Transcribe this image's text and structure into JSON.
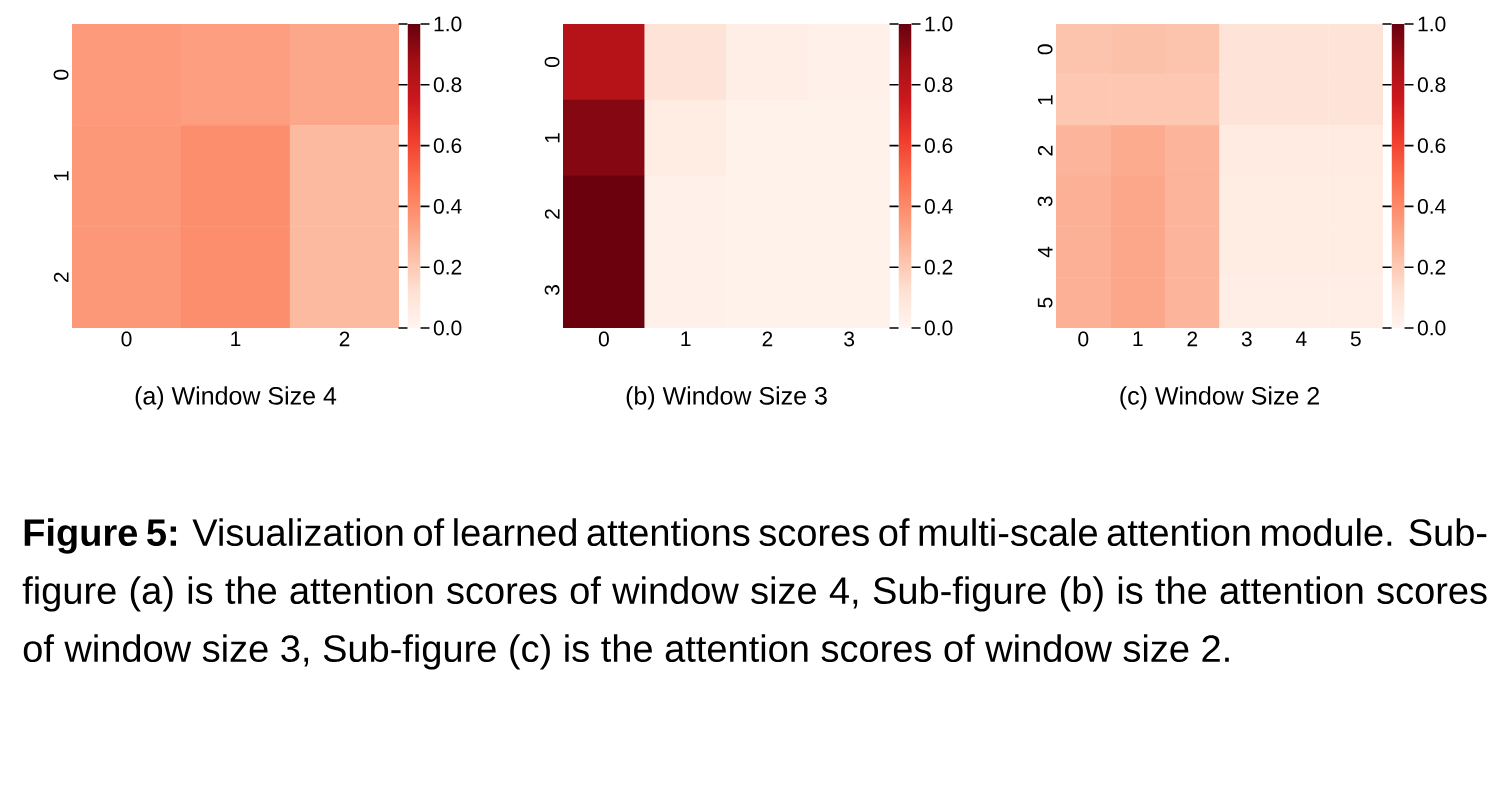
{
  "chart_data": [
    {
      "type": "heatmap",
      "title": "(a) Window Size 4",
      "categories": [
        "0",
        "1",
        "2"
      ],
      "y_categories": [
        "0",
        "1",
        "2"
      ],
      "cells": [
        [
          0.35,
          0.34,
          0.31
        ],
        [
          0.36,
          0.39,
          0.25
        ],
        [
          0.36,
          0.39,
          0.25
        ]
      ],
      "clim": [
        0,
        1
      ],
      "cticks": [
        {
          "value": 0,
          "label": "0.0"
        },
        {
          "value": 0.2,
          "label": "0.2"
        },
        {
          "value": 0.4,
          "label": "0.4"
        },
        {
          "value": 0.6,
          "label": "0.6"
        },
        {
          "value": 0.8,
          "label": "0.8"
        },
        {
          "value": 1,
          "label": "1.0"
        }
      ],
      "annotations": [
        "**Figure 5:** Visualization of learned attentions scores of multi-scale attention module. Sub-figure (a) is the attention scores of window size 4, Sub-figure (b) is the attention scores of window size 3, Sub-figure (c) is the attention scores of window size 2."
      ]
    },
    {
      "type": "heatmap",
      "title": "(b) Window Size 3",
      "categories": [
        "0",
        "1",
        "2",
        "3"
      ],
      "y_categories": [
        "0",
        "1",
        "2",
        "3"
      ],
      "cells": [
        [
          0.82,
          0.1,
          0.04,
          0.03
        ],
        [
          0.94,
          0.05,
          0.02,
          0.02
        ],
        [
          0.99,
          0.03,
          0.02,
          0.02
        ],
        [
          0.99,
          0.03,
          0.02,
          0.02
        ]
      ],
      "clim": [
        0,
        1
      ],
      "cticks": [
        {
          "value": 0,
          "label": "0.0"
        },
        {
          "value": 0.2,
          "label": "0.2"
        },
        {
          "value": 0.4,
          "label": "0.4"
        },
        {
          "value": 0.6,
          "label": "0.6"
        },
        {
          "value": 0.8,
          "label": "0.8"
        },
        {
          "value": 1,
          "label": "1.0"
        }
      ]
    },
    {
      "type": "heatmap",
      "title": "(c) Window Size 2",
      "categories": [
        "0",
        "1",
        "2",
        "3",
        "4",
        "5"
      ],
      "y_categories": [
        "0",
        "1",
        "2",
        "3",
        "4",
        "5"
      ],
      "cells": [
        [
          0.22,
          0.23,
          0.22,
          0.1,
          0.1,
          0.1
        ],
        [
          0.21,
          0.21,
          0.21,
          0.1,
          0.1,
          0.1
        ],
        [
          0.27,
          0.3,
          0.27,
          0.06,
          0.06,
          0.06
        ],
        [
          0.28,
          0.31,
          0.27,
          0.05,
          0.05,
          0.05
        ],
        [
          0.28,
          0.31,
          0.27,
          0.05,
          0.05,
          0.05
        ],
        [
          0.28,
          0.31,
          0.27,
          0.04,
          0.04,
          0.04
        ]
      ],
      "clim": [
        0,
        1
      ],
      "cticks": [
        {
          "value": 0,
          "label": "0.0"
        },
        {
          "value": 0.2,
          "label": "0.2"
        },
        {
          "value": 0.4,
          "label": "0.4"
        },
        {
          "value": 0.6,
          "label": "0.6"
        },
        {
          "value": 0.8,
          "label": "0.8"
        },
        {
          "value": 1,
          "label": "1.0"
        }
      ]
    }
  ]
}
